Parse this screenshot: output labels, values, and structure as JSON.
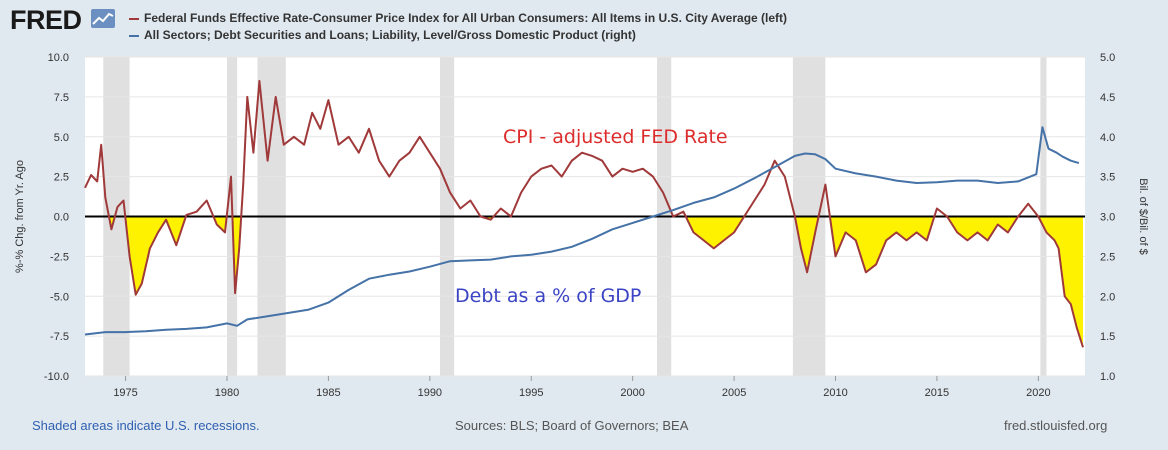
{
  "brand": {
    "name": "FRED"
  },
  "legend": [
    {
      "label": "Federal Funds Effective Rate-Consumer Price Index for All Urban Consumers: All Items in U.S. City Average (left)",
      "color": "#a0393a"
    },
    {
      "label": "All Sectors; Debt Securities and Loans; Liability, Level/Gross Domestic Product (right)",
      "color": "#4572a7"
    }
  ],
  "chart_data": {
    "type": "line",
    "left_axis": {
      "label": "%-% Chg. from Yr. Ago",
      "range": [
        -10,
        10
      ],
      "ticks": [
        "10.0",
        "7.5",
        "5.0",
        "2.5",
        "0.0",
        "-2.5",
        "-5.0",
        "-7.5",
        "-10.0"
      ]
    },
    "right_axis": {
      "label": "Bil. of $/Bil. of $",
      "range": [
        1.0,
        5.0
      ],
      "ticks": [
        "5.0",
        "4.5",
        "4.0",
        "3.5",
        "3.0",
        "2.5",
        "2.0",
        "1.5",
        "1.0"
      ]
    },
    "x_axis": {
      "range": [
        1973,
        2022.3
      ],
      "ticks": [
        "1975",
        "1980",
        "1985",
        "1990",
        "1995",
        "2000",
        "2005",
        "2010",
        "2015",
        "2020"
      ]
    },
    "recessions": [
      [
        1973.9,
        1975.2
      ],
      [
        1980.0,
        1980.5
      ],
      [
        1981.5,
        1982.9
      ],
      [
        1990.5,
        1991.2
      ],
      [
        2001.2,
        2001.9
      ],
      [
        2007.9,
        2009.5
      ],
      [
        2020.1,
        2020.4
      ]
    ],
    "series": [
      {
        "name": "CPI-adjusted Fed Funds Rate",
        "axis": "left",
        "color": "#a0393a",
        "x": [
          1973.0,
          1973.3,
          1973.6,
          1973.8,
          1974.0,
          1974.3,
          1974.6,
          1974.9,
          1975.2,
          1975.5,
          1975.8,
          1976.2,
          1976.6,
          1977.0,
          1977.5,
          1978.0,
          1978.5,
          1979.0,
          1979.5,
          1979.9,
          1980.2,
          1980.4,
          1980.6,
          1980.8,
          1981.0,
          1981.3,
          1981.6,
          1982.0,
          1982.4,
          1982.8,
          1983.3,
          1983.8,
          1984.2,
          1984.6,
          1985.0,
          1985.5,
          1986.0,
          1986.5,
          1987.0,
          1987.5,
          1988.0,
          1988.5,
          1989.0,
          1989.5,
          1990.0,
          1990.5,
          1991.0,
          1991.5,
          1992.0,
          1992.5,
          1993.0,
          1993.5,
          1994.0,
          1994.5,
          1995.0,
          1995.5,
          1996.0,
          1996.5,
          1997.0,
          1997.5,
          1998.0,
          1998.5,
          1999.0,
          1999.5,
          2000.0,
          2000.5,
          2001.0,
          2001.5,
          2002.0,
          2002.5,
          2003.0,
          2003.5,
          2004.0,
          2004.5,
          2005.0,
          2005.5,
          2006.0,
          2006.5,
          2007.0,
          2007.5,
          2008.0,
          2008.3,
          2008.6,
          2009.0,
          2009.5,
          2010.0,
          2010.5,
          2011.0,
          2011.5,
          2012.0,
          2012.5,
          2013.0,
          2013.5,
          2014.0,
          2014.5,
          2015.0,
          2015.5,
          2016.0,
          2016.5,
          2017.0,
          2017.5,
          2018.0,
          2018.5,
          2019.0,
          2019.5,
          2020.0,
          2020.4,
          2020.8,
          2021.0,
          2021.3,
          2021.6,
          2021.9,
          2022.2
        ],
        "y": [
          1.8,
          2.6,
          2.2,
          4.5,
          1.2,
          -0.8,
          0.6,
          1.0,
          -2.5,
          -4.9,
          -4.2,
          -2.0,
          -1.0,
          -0.2,
          -1.8,
          0.1,
          0.3,
          1.0,
          -0.5,
          -1.0,
          2.5,
          -4.8,
          -2.0,
          2.0,
          7.5,
          4.0,
          8.5,
          3.5,
          7.5,
          4.5,
          5.0,
          4.5,
          6.5,
          5.5,
          7.3,
          4.5,
          5.0,
          4.0,
          5.5,
          3.5,
          2.5,
          3.5,
          4.0,
          5.0,
          4.0,
          3.0,
          1.5,
          0.5,
          1.0,
          0.0,
          -0.2,
          0.5,
          0.0,
          1.5,
          2.5,
          3.0,
          3.2,
          2.5,
          3.5,
          4.0,
          3.8,
          3.5,
          2.5,
          3.0,
          2.8,
          3.0,
          2.5,
          1.5,
          0.0,
          0.3,
          -1.0,
          -1.5,
          -2.0,
          -1.5,
          -1.0,
          0.0,
          1.0,
          2.0,
          3.5,
          2.5,
          0.0,
          -2.0,
          -3.5,
          -1.0,
          2.0,
          -2.5,
          -1.0,
          -1.5,
          -3.5,
          -3.0,
          -1.5,
          -1.0,
          -1.5,
          -1.0,
          -1.5,
          0.5,
          0.0,
          -1.0,
          -1.5,
          -1.0,
          -1.5,
          -0.5,
          -1.0,
          0.0,
          0.8,
          0.0,
          -1.0,
          -1.5,
          -2.0,
          -5.0,
          -5.5,
          -7.0,
          -8.2
        ]
      },
      {
        "name": "Debt as a % of GDP",
        "axis": "right",
        "color": "#4572a7",
        "x": [
          1973.0,
          1974.0,
          1975.0,
          1976.0,
          1977.0,
          1978.0,
          1979.0,
          1980.0,
          1980.5,
          1981.0,
          1982.0,
          1983.0,
          1984.0,
          1985.0,
          1986.0,
          1987.0,
          1988.0,
          1989.0,
          1990.0,
          1991.0,
          1992.0,
          1993.0,
          1994.0,
          1995.0,
          1996.0,
          1997.0,
          1998.0,
          1999.0,
          2000.0,
          2001.0,
          2002.0,
          2003.0,
          2004.0,
          2005.0,
          2006.0,
          2007.0,
          2008.0,
          2008.5,
          2009.0,
          2009.5,
          2010.0,
          2011.0,
          2012.0,
          2013.0,
          2014.0,
          2015.0,
          2016.0,
          2017.0,
          2018.0,
          2019.0,
          2019.9,
          2020.2,
          2020.5,
          2020.9,
          2021.2,
          2021.6,
          2022.0
        ],
        "y": [
          1.52,
          1.55,
          1.55,
          1.56,
          1.58,
          1.59,
          1.61,
          1.66,
          1.63,
          1.71,
          1.75,
          1.79,
          1.83,
          1.92,
          2.08,
          2.22,
          2.27,
          2.31,
          2.37,
          2.44,
          2.45,
          2.46,
          2.5,
          2.52,
          2.56,
          2.62,
          2.72,
          2.84,
          2.92,
          3.0,
          3.08,
          3.17,
          3.24,
          3.35,
          3.48,
          3.62,
          3.76,
          3.79,
          3.78,
          3.72,
          3.6,
          3.54,
          3.5,
          3.45,
          3.42,
          3.43,
          3.45,
          3.45,
          3.42,
          3.44,
          3.53,
          4.12,
          3.85,
          3.8,
          3.75,
          3.7,
          3.67
        ]
      }
    ],
    "annotations": [
      {
        "text": "CPI - adjusted FED Rate",
        "color": "#dd2c2c"
      },
      {
        "text": "Debt as a % of GDP",
        "color": "#3b44c4"
      }
    ]
  },
  "footer": {
    "recession_note": "Shaded areas indicate U.S. recessions.",
    "sources": "Sources: BLS; Board of Governors; BEA",
    "site": "fred.stlouisfed.org"
  }
}
